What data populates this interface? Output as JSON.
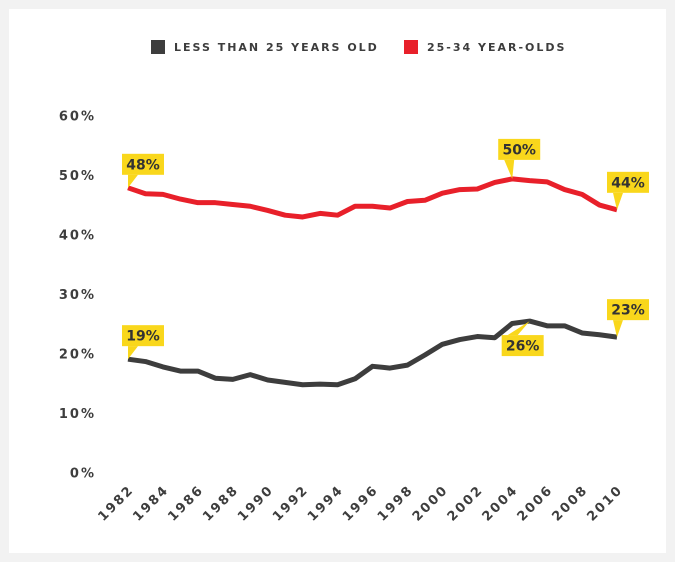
{
  "chart_data": {
    "type": "line",
    "x": [
      1982,
      1983,
      1984,
      1985,
      1986,
      1987,
      1988,
      1989,
      1990,
      1991,
      1992,
      1993,
      1994,
      1995,
      1996,
      1997,
      1998,
      1999,
      2000,
      2001,
      2002,
      2003,
      2004,
      2005,
      2006,
      2007,
      2008,
      2009,
      2010
    ],
    "xlim": [
      1982,
      2010
    ],
    "xticks": [
      1982,
      1984,
      1986,
      1988,
      1990,
      1992,
      1994,
      1996,
      1998,
      2000,
      2002,
      2004,
      2006,
      2008,
      2010
    ],
    "ylim": [
      0,
      60
    ],
    "yticks": [
      {
        "value": 0,
        "label": "0%"
      },
      {
        "value": 10,
        "label": "10%"
      },
      {
        "value": 20,
        "label": "20%"
      },
      {
        "value": 30,
        "label": "30%"
      },
      {
        "value": 40,
        "label": "40%"
      },
      {
        "value": 50,
        "label": "50%"
      },
      {
        "value": 60,
        "label": "60%"
      }
    ],
    "grid": false,
    "legend": "top",
    "label_color": "#f9d71c",
    "series": [
      {
        "name": "LESS THAN 25 YEARS OLD",
        "color": "#3d3d3d",
        "values": [
          19.3,
          18.9,
          18.0,
          17.3,
          17.3,
          16.1,
          15.9,
          16.7,
          15.8,
          15.4,
          15.0,
          15.1,
          15.0,
          16.0,
          18.1,
          17.8,
          18.3,
          20.0,
          21.8,
          22.6,
          23.1,
          22.9,
          25.3,
          25.7,
          24.9,
          24.9,
          23.7,
          23.4,
          23.0
        ],
        "value_labels": [
          "19%",
          null,
          null,
          null,
          null,
          null,
          null,
          null,
          null,
          null,
          null,
          null,
          null,
          null,
          null,
          null,
          null,
          null,
          null,
          null,
          null,
          null,
          null,
          "26%",
          null,
          null,
          null,
          null,
          "23%"
        ]
      },
      {
        "name": "25-34 YEAR-OLDS",
        "color": "#e8202a",
        "values": [
          48.1,
          47.1,
          47.0,
          46.2,
          45.6,
          45.6,
          45.3,
          45.0,
          44.3,
          43.5,
          43.2,
          43.8,
          43.5,
          45.0,
          45.0,
          44.7,
          45.8,
          46.0,
          47.2,
          47.8,
          47.9,
          49.0,
          49.6,
          49.3,
          49.1,
          47.8,
          47.0,
          45.2,
          44.4
        ],
        "value_labels": [
          "48%",
          null,
          null,
          null,
          null,
          null,
          null,
          null,
          null,
          null,
          null,
          null,
          null,
          null,
          null,
          null,
          null,
          null,
          null,
          null,
          null,
          null,
          "50%",
          null,
          null,
          null,
          null,
          null,
          "44%"
        ]
      }
    ]
  }
}
